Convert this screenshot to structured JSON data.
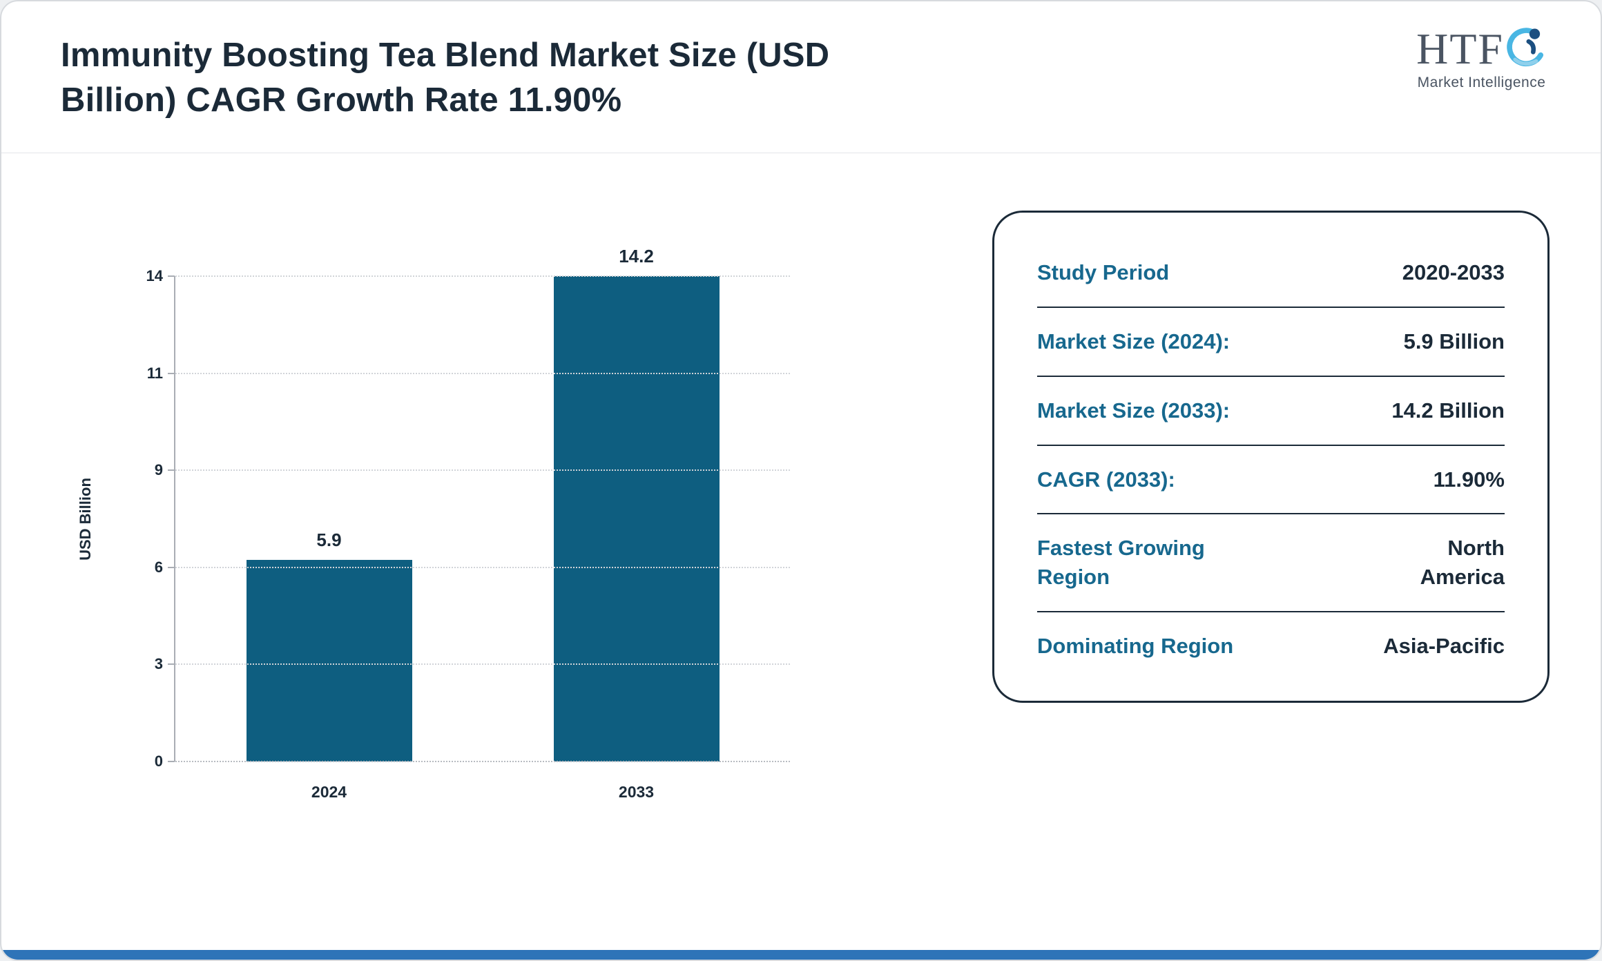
{
  "page": {
    "title": "Immunity Boosting Tea Blend Market Size (USD Billion) CAGR Growth Rate 11.90%"
  },
  "logo": {
    "text": "HTF",
    "subtext": "Market Intelligence"
  },
  "chart_data": {
    "type": "bar",
    "title": "",
    "xlabel": "",
    "ylabel": "USD Billion",
    "categories": [
      "2024",
      "2033"
    ],
    "values": [
      5.9,
      14.2
    ],
    "data_labels": [
      "5.9",
      "14.2"
    ],
    "yticks": [
      0,
      3,
      6,
      9,
      11,
      14
    ],
    "ylim": [
      0,
      14.2
    ],
    "bar_color": "#0e5e80",
    "grid": "horizontal dotted",
    "legend": "none"
  },
  "stats_card": {
    "rows": [
      {
        "label": "Study Period",
        "value": "2020-2033"
      },
      {
        "label": "Market Size (2024):",
        "value": "5.9 Billion"
      },
      {
        "label": "Market Size (2033):",
        "value": "14.2 Billion"
      },
      {
        "label": "CAGR (2033):",
        "value": "11.90%"
      },
      {
        "label": "Fastest Growing Region",
        "value": "North America",
        "wrap": true
      },
      {
        "label": "Dominating Region",
        "value": "Asia-Pacific"
      }
    ]
  },
  "colors": {
    "bar": "#0e5e80",
    "label_teal": "#17688e",
    "dark_text": "#1b2a38",
    "footer_blue": "#2e74b8",
    "gridline": "#d1d4d8"
  }
}
